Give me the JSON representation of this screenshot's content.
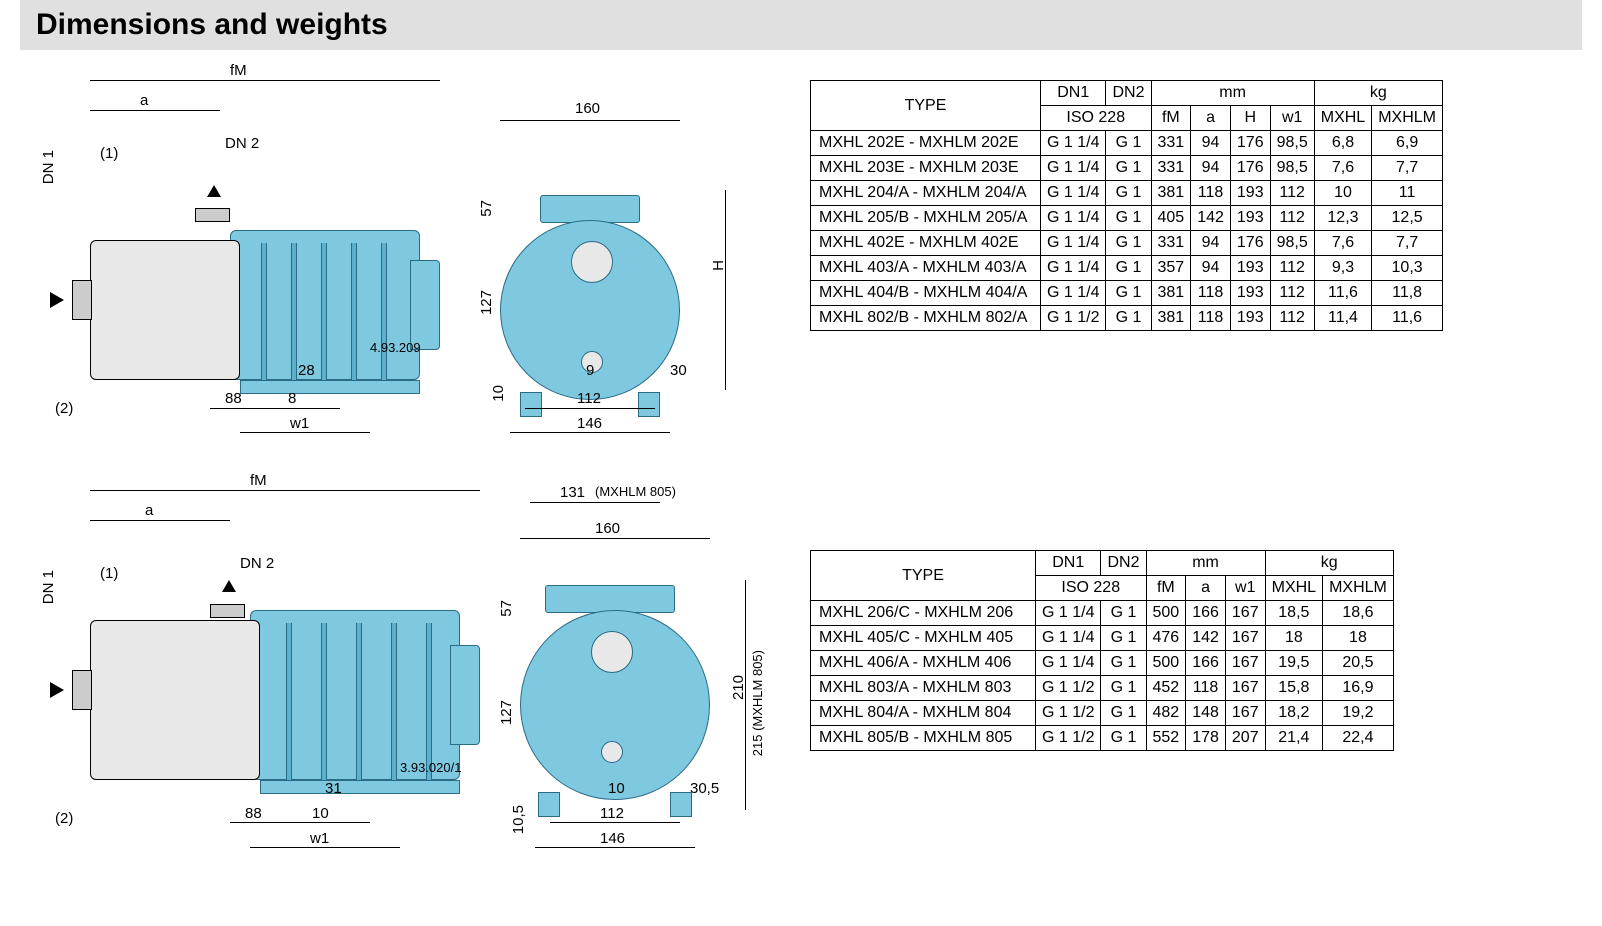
{
  "title": "Dimensions and weights",
  "colors": {
    "motor": "#7fc9e0",
    "motor_border": "#2a6b86",
    "casing": "#e8e8e8",
    "title_bg": "#e0e0e0",
    "line": "#000000"
  },
  "diagram1": {
    "labels": [
      "fM",
      "a",
      "DN 1",
      "DN 2",
      "(1)",
      "(2)",
      "28",
      "88",
      "8",
      "w1",
      "4.93.209",
      "160",
      "57",
      "127",
      "10",
      "9",
      "112",
      "146",
      "30",
      "H"
    ]
  },
  "diagram2": {
    "labels": [
      "fM",
      "a",
      "DN 1",
      "DN 2",
      "(1)",
      "(2)",
      "31",
      "88",
      "10",
      "w1",
      "3.93.020/1",
      "160",
      "131",
      "(MXHLM 805)",
      "57",
      "127",
      "10,5",
      "10",
      "112",
      "146",
      "30,5",
      "210",
      "215 (MXHLM 805)"
    ]
  },
  "table1": {
    "head": {
      "type": "TYPE",
      "dn1": "DN1",
      "dn2": "DN2",
      "iso": "ISO 228",
      "mm": "mm",
      "kg": "kg",
      "fM": "fM",
      "a": "a",
      "H": "H",
      "w1": "w1",
      "c1": "MXHL",
      "c2": "MXHLM"
    },
    "rows": [
      [
        "MXHL 202E",
        "MXHLM 202E",
        "G 1 1/4",
        "G 1",
        "331",
        "94",
        "176",
        "98,5",
        "6,8",
        "6,9"
      ],
      [
        "MXHL 203E",
        "MXHLM 203E",
        "G 1 1/4",
        "G 1",
        "331",
        "94",
        "176",
        "98,5",
        "7,6",
        "7,7"
      ],
      [
        "MXHL 204/A",
        "MXHLM 204/A",
        "G 1 1/4",
        "G 1",
        "381",
        "118",
        "193",
        "112",
        "10",
        "11"
      ],
      [
        "MXHL 205/B",
        "MXHLM 205/A",
        "G 1 1/4",
        "G 1",
        "405",
        "142",
        "193",
        "112",
        "12,3",
        "12,5"
      ],
      [
        "MXHL 402E",
        "MXHLM 402E",
        "G 1 1/4",
        "G 1",
        "331",
        "94",
        "176",
        "98,5",
        "7,6",
        "7,7"
      ],
      [
        "MXHL 403/A",
        "MXHLM 403/A",
        "G 1 1/4",
        "G 1",
        "357",
        "94",
        "193",
        "112",
        "9,3",
        "10,3"
      ],
      [
        "MXHL 404/B",
        "MXHLM 404/A",
        "G 1 1/4",
        "G 1",
        "381",
        "118",
        "193",
        "112",
        "11,6",
        "11,8"
      ],
      [
        "MXHL 802/B",
        "MXHLM 802/A",
        "G 1 1/2",
        "G 1",
        "381",
        "118",
        "193",
        "112",
        "11,4",
        "11,6"
      ]
    ]
  },
  "table2": {
    "head": {
      "type": "TYPE",
      "dn1": "DN1",
      "dn2": "DN2",
      "iso": "ISO 228",
      "mm": "mm",
      "kg": "kg",
      "fM": "fM",
      "a": "a",
      "w1": "w1",
      "c1": "MXHL",
      "c2": "MXHLM"
    },
    "rows": [
      [
        "MXHL 206/C",
        "MXHLM 206",
        "G 1 1/4",
        "G 1",
        "500",
        "166",
        "167",
        "18,5",
        "18,6"
      ],
      [
        "MXHL 405/C",
        "MXHLM 405",
        "G 1 1/4",
        "G 1",
        "476",
        "142",
        "167",
        "18",
        "18"
      ],
      [
        "MXHL 406/A",
        "MXHLM 406",
        "G 1 1/4",
        "G 1",
        "500",
        "166",
        "167",
        "19,5",
        "20,5"
      ],
      [
        "MXHL 803/A",
        "MXHLM 803",
        "G 1 1/2",
        "G 1",
        "452",
        "118",
        "167",
        "15,8",
        "16,9"
      ],
      [
        "MXHL 804/A",
        "MXHLM 804",
        "G 1 1/2",
        "G 1",
        "482",
        "148",
        "167",
        "18,2",
        "19,2"
      ],
      [
        "MXHL 805/B",
        "MXHLM 805",
        "G 1 1/2",
        "G 1",
        "552",
        "178",
        "207",
        "21,4",
        "22,4"
      ]
    ]
  }
}
